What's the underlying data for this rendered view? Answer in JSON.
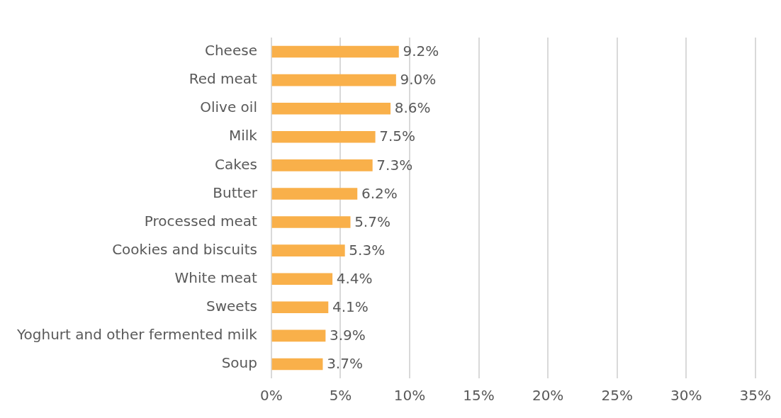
{
  "chart_data": {
    "type": "bar",
    "orientation": "horizontal",
    "categories": [
      "Cheese",
      "Red meat",
      "Olive oil",
      "Milk",
      "Cakes",
      "Butter",
      "Processed meat",
      "Cookies and biscuits",
      "White meat",
      "Sweets",
      "Yoghurt and other fermented milk",
      "Soup"
    ],
    "values": [
      9.2,
      9.0,
      8.6,
      7.5,
      7.3,
      6.2,
      5.7,
      5.3,
      4.4,
      4.1,
      3.9,
      3.7
    ],
    "value_labels": [
      "9.2%",
      "9.0%",
      "8.6%",
      "7.5%",
      "7.3%",
      "6.2%",
      "5.7%",
      "5.3%",
      "4.4%",
      "4.1%",
      "3.9%",
      "3.7%"
    ],
    "color": "#f9b04a",
    "xlim": [
      0,
      35
    ],
    "xticks": [
      {
        "value": 0,
        "label": "0%"
      },
      {
        "value": 5,
        "label": "5%"
      },
      {
        "value": 10,
        "label": "10%"
      },
      {
        "value": 15,
        "label": "15%"
      },
      {
        "value": 20,
        "label": "20%"
      },
      {
        "value": 25,
        "label": "25%"
      },
      {
        "value": 30,
        "label": "30%"
      },
      {
        "value": 35,
        "label": "35%"
      }
    ],
    "grid": "x",
    "legend": false
  }
}
